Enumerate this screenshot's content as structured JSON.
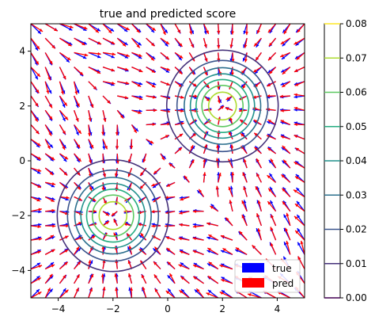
{
  "chart_data": {
    "type": "quiver+contour",
    "title": "true and predicted score",
    "xlim": [
      -5,
      5
    ],
    "ylim": [
      -5,
      5
    ],
    "xticks": [
      -4,
      -2,
      0,
      2,
      4
    ],
    "yticks": [
      -4,
      -2,
      0,
      2,
      4
    ],
    "xtick_labels": [
      "−4",
      "−2",
      "0",
      "2",
      "4"
    ],
    "ytick_labels": [
      "−4",
      "−2",
      "0",
      "2",
      "4"
    ],
    "grid": false,
    "mixture_centers": [
      [
        -2,
        -2
      ],
      [
        2,
        2
      ]
    ],
    "mixture_sigma": 1.0,
    "contour_levels": [
      0.01,
      0.02,
      0.03,
      0.04,
      0.05,
      0.06,
      0.07
    ],
    "contour_colors": [
      "#45317a",
      "#3a548c",
      "#2d708e",
      "#21918c",
      "#27ad81",
      "#5ec962",
      "#addc30"
    ],
    "colorbar": {
      "ticks": [
        0.0,
        0.01,
        0.02,
        0.03,
        0.04,
        0.05,
        0.06,
        0.07,
        0.08
      ],
      "tick_labels": [
        "0.00",
        "0.01",
        "0.02",
        "0.03",
        "0.04",
        "0.05",
        "0.06",
        "0.07",
        "0.08"
      ],
      "colors": [
        "#440154",
        "#45317a",
        "#3a548c",
        "#2d708e",
        "#21918c",
        "#27ad81",
        "#5ec962",
        "#addc30",
        "#fde725"
      ]
    },
    "quiver": {
      "grid_n": 20,
      "series": [
        {
          "name": "true",
          "color": "#0000ff"
        },
        {
          "name": "pred",
          "color": "#ff0000"
        }
      ]
    },
    "legend": {
      "placement": "lower-right",
      "entries": [
        {
          "label": "true",
          "color": "#0000ff"
        },
        {
          "label": "pred",
          "color": "#ff0000"
        }
      ]
    }
  }
}
